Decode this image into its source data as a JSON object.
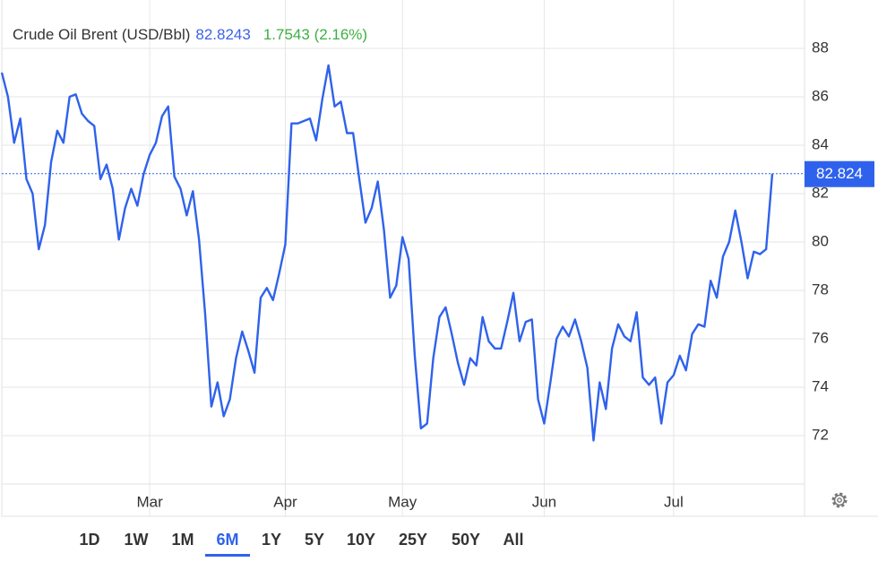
{
  "chart_data": {
    "type": "line",
    "title": "Crude Oil Brent (USD/Bbl)",
    "price": 82.8243,
    "change": "1.7543 (2.16%)",
    "last_value_label": "82.824",
    "categories": [
      null,
      null,
      null,
      null,
      null,
      null,
      null,
      null,
      null,
      null,
      null,
      null,
      null,
      null,
      null,
      null,
      null,
      null,
      null,
      null,
      null,
      null,
      null,
      null,
      "Mar",
      null,
      null,
      null,
      null,
      null,
      null,
      null,
      null,
      null,
      null,
      null,
      null,
      null,
      null,
      null,
      null,
      null,
      null,
      null,
      null,
      null,
      "Apr",
      null,
      null,
      null,
      null,
      null,
      null,
      null,
      null,
      null,
      null,
      null,
      null,
      null,
      null,
      null,
      null,
      null,
      null,
      "May",
      null,
      null,
      null,
      null,
      null,
      null,
      null,
      null,
      null,
      null,
      null,
      null,
      null,
      null,
      null,
      null,
      null,
      null,
      null,
      null,
      null,
      null,
      "Jun",
      null,
      null,
      null,
      null,
      null,
      null,
      null,
      null,
      null,
      null,
      null,
      null,
      null,
      null,
      null,
      null,
      null,
      null,
      null,
      null,
      "Jul",
      null,
      null,
      null,
      null,
      null,
      null,
      null,
      null,
      null,
      null,
      null,
      null,
      null,
      null,
      null,
      null
    ],
    "series": [
      {
        "name": "Crude Oil Brent",
        "color": "#2f62ec",
        "values": [
          87.0,
          86.0,
          84.1,
          85.1,
          82.6,
          82.0,
          79.7,
          80.7,
          83.3,
          84.6,
          84.1,
          86.0,
          86.1,
          85.3,
          85.0,
          84.8,
          82.6,
          83.2,
          82.2,
          80.1,
          81.4,
          82.2,
          81.5,
          82.8,
          83.6,
          84.1,
          85.2,
          85.6,
          82.7,
          82.2,
          81.1,
          82.1,
          80.1,
          77.0,
          73.2,
          74.2,
          72.8,
          73.5,
          75.2,
          76.3,
          75.5,
          74.6,
          77.7,
          78.1,
          77.6,
          78.7,
          79.9,
          84.9,
          84.9,
          85.0,
          85.1,
          84.2,
          85.9,
          87.3,
          85.6,
          85.8,
          84.5,
          84.5,
          82.6,
          80.8,
          81.4,
          82.5,
          80.5,
          77.7,
          78.2,
          80.2,
          79.3,
          75.3,
          72.3,
          72.5,
          75.2,
          76.9,
          77.3,
          76.2,
          75.0,
          74.1,
          75.2,
          74.9,
          76.9,
          75.9,
          75.6,
          75.6,
          76.7,
          77.9,
          75.9,
          76.7,
          76.8,
          73.5,
          72.5,
          74.2,
          76.0,
          76.5,
          76.1,
          76.8,
          75.9,
          74.8,
          71.8,
          74.2,
          73.1,
          75.6,
          76.6,
          76.1,
          75.9,
          77.1,
          74.4,
          74.1,
          74.4,
          72.5,
          74.2,
          74.5,
          75.3,
          74.7,
          76.2,
          76.6,
          76.5,
          78.4,
          77.7,
          79.4,
          80.0,
          81.3,
          80.0,
          78.5,
          79.6,
          79.5,
          79.7,
          82.8243
        ]
      }
    ],
    "ylim": [
      70,
      90
    ],
    "yticks": [
      72,
      74,
      76,
      78,
      80,
      82,
      84,
      86,
      88
    ],
    "grid": true,
    "range_buttons": [
      "1D",
      "1W",
      "1M",
      "6M",
      "1Y",
      "5Y",
      "10Y",
      "25Y",
      "50Y",
      "All"
    ],
    "active_range_index": 3
  }
}
